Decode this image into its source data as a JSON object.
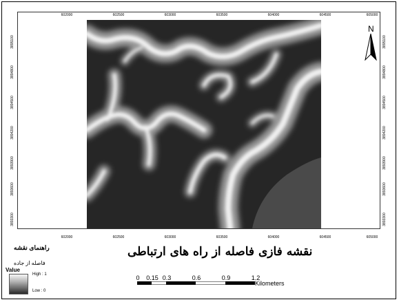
{
  "map": {
    "title": "نقشه فازی فاصله از راه های ارتباطی",
    "north_label": "N",
    "x_ticks": [
      "602000",
      "602500",
      "603000",
      "603500",
      "604000",
      "604500",
      "605000"
    ],
    "y_ticks": [
      "3895100",
      "3894800",
      "3894500",
      "3894200",
      "3893900",
      "3893600",
      "3893300"
    ]
  },
  "legend": {
    "title": "راهنمای نقشه",
    "layer_name": "فاصله از جاده",
    "value_label": "Value",
    "high_label": "High : 1",
    "low_label": "Low : 0"
  },
  "scale": {
    "labels": [
      "0",
      "0.15",
      "0.3",
      "0.6",
      "0.9",
      "1.2"
    ],
    "unit": "Kilometers"
  },
  "colors": {
    "near_road": "#f2f2f2",
    "far_from_road": "#262626",
    "outer_region": "#4a4a4a"
  }
}
